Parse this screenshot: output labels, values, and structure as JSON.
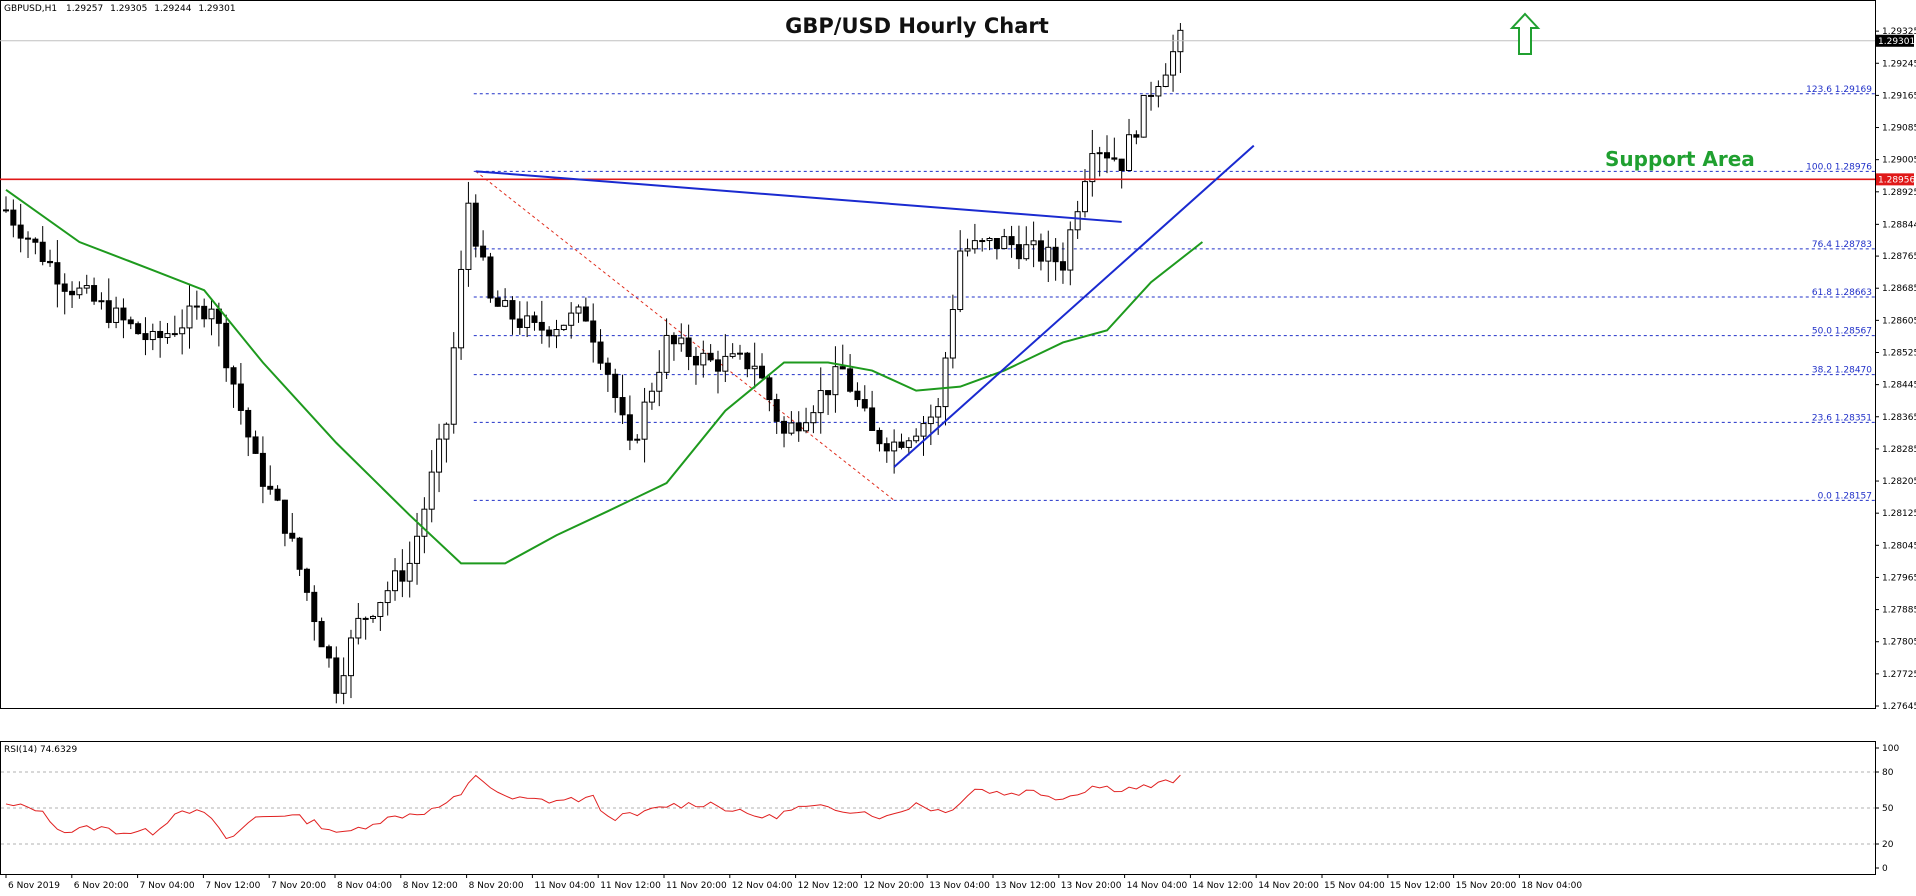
{
  "chart_data": {
    "type": "candlestick",
    "title": "GBP/USD Hourly Chart",
    "symbol_info": {
      "symbol": "GBPUSD,H1",
      "open": "1.29257",
      "high": "1.29305",
      "low": "1.29244",
      "close": "1.29301"
    },
    "price_axis": {
      "ylim": [
        1.2764,
        1.294
      ],
      "ticks": [
        "1.29325",
        "1.29245",
        "1.29165",
        "1.29085",
        "1.29005",
        "1.28925",
        "1.28844",
        "1.28765",
        "1.28685",
        "1.28605",
        "1.28525",
        "1.28445",
        "1.28365",
        "1.28285",
        "1.28205",
        "1.28125",
        "1.28045",
        "1.27965",
        "1.27885",
        "1.27805",
        "1.27725",
        "1.27645"
      ],
      "current_price_label": "1.29301",
      "current_price": 1.29301,
      "resistance_label": "1.28956",
      "resistance_price": 1.28956
    },
    "time_axis": {
      "labels": [
        "6 Nov 2019",
        "6 Nov 20:00",
        "7 Nov 04:00",
        "7 Nov 12:00",
        "7 Nov 20:00",
        "8 Nov 04:00",
        "8 Nov 12:00",
        "8 Nov 20:00",
        "11 Nov 04:00",
        "11 Nov 12:00",
        "11 Nov 20:00",
        "12 Nov 04:00",
        "12 Nov 12:00",
        "12 Nov 20:00",
        "13 Nov 04:00",
        "13 Nov 12:00",
        "13 Nov 20:00",
        "14 Nov 04:00",
        "14 Nov 12:00",
        "14 Nov 20:00",
        "15 Nov 04:00",
        "15 Nov 12:00",
        "15 Nov 20:00",
        "18 Nov 04:00"
      ]
    },
    "key_points": [
      {
        "bar": 0,
        "price": 1.2888
      },
      {
        "bar": 8,
        "price": 1.287
      },
      {
        "bar": 20,
        "price": 1.2855
      },
      {
        "bar": 28,
        "price": 1.2865
      },
      {
        "bar": 34,
        "price": 1.2825
      },
      {
        "bar": 38,
        "price": 1.281
      },
      {
        "bar": 45,
        "price": 1.277
      },
      {
        "bar": 48,
        "price": 1.2785
      },
      {
        "bar": 55,
        "price": 1.28
      },
      {
        "bar": 60,
        "price": 1.2835
      },
      {
        "bar": 63,
        "price": 1.289
      },
      {
        "bar": 66,
        "price": 1.2865
      },
      {
        "bar": 72,
        "price": 1.2858
      },
      {
        "bar": 79,
        "price": 1.2862
      },
      {
        "bar": 82,
        "price": 1.2848
      },
      {
        "bar": 85,
        "price": 1.2828
      },
      {
        "bar": 90,
        "price": 1.2855
      },
      {
        "bar": 96,
        "price": 1.285
      },
      {
        "bar": 102,
        "price": 1.285
      },
      {
        "bar": 106,
        "price": 1.2832
      },
      {
        "bar": 110,
        "price": 1.284
      },
      {
        "bar": 114,
        "price": 1.2848
      },
      {
        "bar": 118,
        "price": 1.2832
      },
      {
        "bar": 121,
        "price": 1.283
      },
      {
        "bar": 127,
        "price": 1.2838
      },
      {
        "bar": 130,
        "price": 1.2878
      },
      {
        "bar": 136,
        "price": 1.288
      },
      {
        "bar": 144,
        "price": 1.2875
      },
      {
        "bar": 148,
        "price": 1.2905
      },
      {
        "bar": 152,
        "price": 1.29
      },
      {
        "bar": 156,
        "price": 1.2918
      },
      {
        "bar": 160,
        "price": 1.293
      }
    ],
    "moving_average": {
      "color": "#1e9a1e",
      "points": [
        {
          "bar": 0,
          "price": 1.2893
        },
        {
          "bar": 10,
          "price": 1.288
        },
        {
          "bar": 20,
          "price": 1.2873
        },
        {
          "bar": 27,
          "price": 1.2868
        },
        {
          "bar": 35,
          "price": 1.285
        },
        {
          "bar": 45,
          "price": 1.283
        },
        {
          "bar": 55,
          "price": 1.2812
        },
        {
          "bar": 62,
          "price": 1.28
        },
        {
          "bar": 68,
          "price": 1.28
        },
        {
          "bar": 75,
          "price": 1.2807
        },
        {
          "bar": 82,
          "price": 1.2813
        },
        {
          "bar": 90,
          "price": 1.282
        },
        {
          "bar": 98,
          "price": 1.2838
        },
        {
          "bar": 106,
          "price": 1.285
        },
        {
          "bar": 112,
          "price": 1.285
        },
        {
          "bar": 118,
          "price": 1.2848
        },
        {
          "bar": 124,
          "price": 1.2843
        },
        {
          "bar": 130,
          "price": 1.2844
        },
        {
          "bar": 136,
          "price": 1.2848
        },
        {
          "bar": 144,
          "price": 1.2855
        },
        {
          "bar": 150,
          "price": 1.2858
        },
        {
          "bar": 156,
          "price": 1.287
        },
        {
          "bar": 163,
          "price": 1.288
        }
      ]
    },
    "fibonacci": {
      "color": "#2030c8",
      "levels": [
        {
          "label": "123.6 1.29169",
          "price": 1.29169
        },
        {
          "label": "100.0 1.28976",
          "price": 1.28976
        },
        {
          "label": "76.4 1.28783",
          "price": 1.28783
        },
        {
          "label": "61.8 1.28663",
          "price": 1.28663
        },
        {
          "label": "50.0 1.28567",
          "price": 1.28567
        },
        {
          "label": "38.2 1.28470",
          "price": 1.2847
        },
        {
          "label": "23.6 1.28351",
          "price": 1.28351
        },
        {
          "label": "0.0 1.28157",
          "price": 1.28157
        }
      ],
      "swing_from": {
        "bar": 64,
        "price": 1.28976
      },
      "swing_to": {
        "bar": 121,
        "price": 1.28157
      }
    },
    "trendlines": [
      {
        "name": "bearish-trend-line",
        "color": "#1a2ad0",
        "from": {
          "bar": 64,
          "price": 1.28976
        },
        "to": {
          "bar": 152,
          "price": 1.2885
        }
      },
      {
        "name": "bullish-trend-line",
        "color": "#1a2ad0",
        "from": {
          "bar": 121,
          "price": 1.2824
        },
        "to": {
          "bar": 170,
          "price": 1.2904
        }
      }
    ],
    "annotations": {
      "support_label": "Support Area",
      "support_color": "#20a030",
      "arrow_color": "#20a030"
    },
    "rsi": {
      "label": "RSI(14) 74.6329",
      "ylim": [
        0,
        100
      ],
      "ticks": [
        "100",
        "80",
        "50",
        "20",
        "0"
      ],
      "levels": [
        80,
        50,
        20
      ],
      "color": "#e02020",
      "points": [
        {
          "bar": 0,
          "value": 52
        },
        {
          "bar": 4,
          "value": 50
        },
        {
          "bar": 8,
          "value": 30
        },
        {
          "bar": 12,
          "value": 34
        },
        {
          "bar": 16,
          "value": 30
        },
        {
          "bar": 20,
          "value": 30
        },
        {
          "bar": 24,
          "value": 50
        },
        {
          "bar": 28,
          "value": 42
        },
        {
          "bar": 30,
          "value": 22
        },
        {
          "bar": 34,
          "value": 42
        },
        {
          "bar": 38,
          "value": 45
        },
        {
          "bar": 42,
          "value": 38
        },
        {
          "bar": 46,
          "value": 28
        },
        {
          "bar": 50,
          "value": 38
        },
        {
          "bar": 54,
          "value": 44
        },
        {
          "bar": 58,
          "value": 48
        },
        {
          "bar": 62,
          "value": 60
        },
        {
          "bar": 64,
          "value": 78
        },
        {
          "bar": 68,
          "value": 58
        },
        {
          "bar": 74,
          "value": 56
        },
        {
          "bar": 80,
          "value": 58
        },
        {
          "bar": 82,
          "value": 42
        },
        {
          "bar": 86,
          "value": 44
        },
        {
          "bar": 90,
          "value": 52
        },
        {
          "bar": 96,
          "value": 54
        },
        {
          "bar": 100,
          "value": 46
        },
        {
          "bar": 104,
          "value": 42
        },
        {
          "bar": 108,
          "value": 50
        },
        {
          "bar": 112,
          "value": 50
        },
        {
          "bar": 116,
          "value": 48
        },
        {
          "bar": 120,
          "value": 42
        },
        {
          "bar": 124,
          "value": 54
        },
        {
          "bar": 128,
          "value": 46
        },
        {
          "bar": 132,
          "value": 66
        },
        {
          "bar": 136,
          "value": 62
        },
        {
          "bar": 140,
          "value": 64
        },
        {
          "bar": 144,
          "value": 58
        },
        {
          "bar": 148,
          "value": 68
        },
        {
          "bar": 152,
          "value": 66
        },
        {
          "bar": 156,
          "value": 68
        },
        {
          "bar": 160,
          "value": 74.6
        }
      ]
    }
  }
}
